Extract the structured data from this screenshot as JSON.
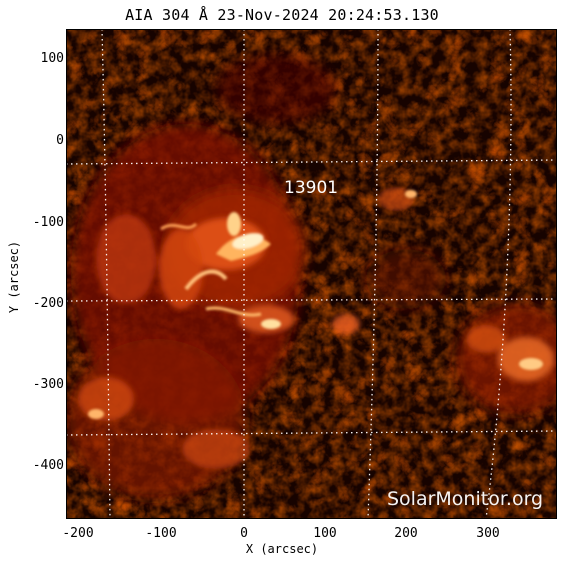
{
  "title": "AIA 304 Å 23-Nov-2024 20:24:53.130",
  "region_label": "13901",
  "watermark": "SolarMonitor.org",
  "x_axis_label": "X (arcsec)",
  "y_axis_label": "Y (arcsec)",
  "x_ticks": [
    "-200",
    "-100",
    "0",
    "100",
    "200",
    "300"
  ],
  "y_ticks": [
    "100",
    "0",
    "-100",
    "-200",
    "-300",
    "-400"
  ],
  "colors": {
    "background_dark": "#1a0300",
    "mid": "#8a1a00",
    "bright": "#ff8a2a",
    "hot": "#fff3c8",
    "grid": "#ffffff"
  },
  "grid": "dotted-white"
}
